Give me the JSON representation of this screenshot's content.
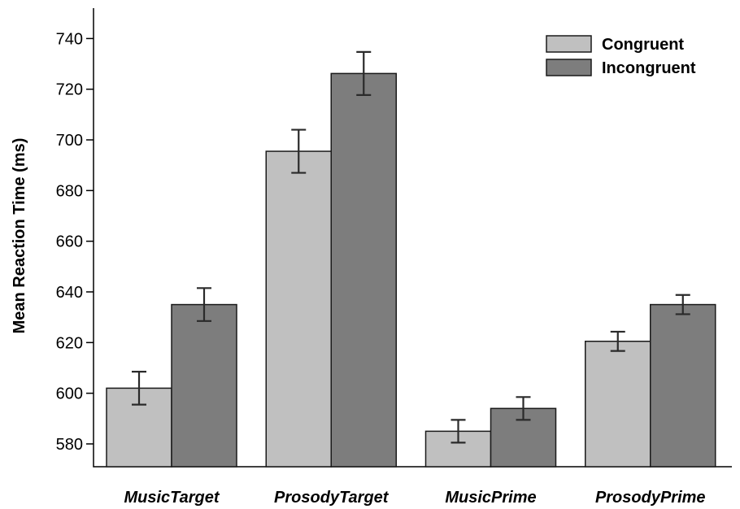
{
  "chart_data": {
    "type": "bar",
    "title": "",
    "xlabel": "",
    "ylabel": "Mean Reaction Time (ms)",
    "ylim": [
      571,
      752
    ],
    "yticks": [
      580,
      600,
      620,
      640,
      660,
      680,
      700,
      720,
      740
    ],
    "categories": [
      "MusicTarget",
      "ProsodyTarget",
      "MusicPrime",
      "ProsodyPrime"
    ],
    "series": [
      {
        "name": "Congruent",
        "color": "#c0c0c0",
        "values": [
          602,
          695.5,
          585,
          620.5
        ],
        "errors": [
          6.5,
          8.5,
          4.5,
          3.8
        ]
      },
      {
        "name": "Incongruent",
        "color": "#7d7d7d",
        "values": [
          635,
          726.2,
          594,
          635
        ],
        "errors": [
          6.5,
          8.5,
          4.5,
          3.8
        ]
      }
    ],
    "legend_position": "top-right",
    "grid": false
  }
}
